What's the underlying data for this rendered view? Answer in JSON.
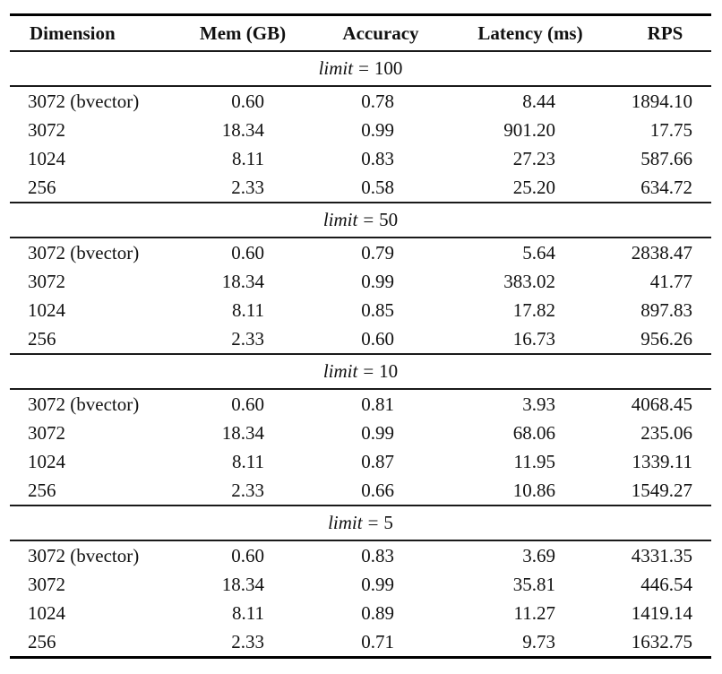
{
  "colors": {
    "background": "#ffffff",
    "text": "#111111",
    "rule": "#000000"
  },
  "table": {
    "columns": [
      "Dimension",
      "Mem (GB)",
      "Accuracy",
      "Latency (ms)",
      "RPS"
    ],
    "sections": [
      {
        "label": {
          "word": "limit",
          "eq": "=",
          "value": "100"
        },
        "rows": [
          [
            "3072 (bvector)",
            "0.60",
            "0.78",
            "8.44",
            "1894.10"
          ],
          [
            "3072",
            "18.34",
            "0.99",
            "901.20",
            "17.75"
          ],
          [
            "1024",
            "8.11",
            "0.83",
            "27.23",
            "587.66"
          ],
          [
            "256",
            "2.33",
            "0.58",
            "25.20",
            "634.72"
          ]
        ]
      },
      {
        "label": {
          "word": "limit",
          "eq": "=",
          "value": "50"
        },
        "rows": [
          [
            "3072 (bvector)",
            "0.60",
            "0.79",
            "5.64",
            "2838.47"
          ],
          [
            "3072",
            "18.34",
            "0.99",
            "383.02",
            "41.77"
          ],
          [
            "1024",
            "8.11",
            "0.85",
            "17.82",
            "897.83"
          ],
          [
            "256",
            "2.33",
            "0.60",
            "16.73",
            "956.26"
          ]
        ]
      },
      {
        "label": {
          "word": "limit",
          "eq": "=",
          "value": "10"
        },
        "rows": [
          [
            "3072 (bvector)",
            "0.60",
            "0.81",
            "3.93",
            "4068.45"
          ],
          [
            "3072",
            "18.34",
            "0.99",
            "68.06",
            "235.06"
          ],
          [
            "1024",
            "8.11",
            "0.87",
            "11.95",
            "1339.11"
          ],
          [
            "256",
            "2.33",
            "0.66",
            "10.86",
            "1549.27"
          ]
        ]
      },
      {
        "label": {
          "word": "limit",
          "eq": "=",
          "value": "5"
        },
        "rows": [
          [
            "3072 (bvector)",
            "0.60",
            "0.83",
            "3.69",
            "4331.35"
          ],
          [
            "3072",
            "18.34",
            "0.99",
            "35.81",
            "446.54"
          ],
          [
            "1024",
            "8.11",
            "0.89",
            "11.27",
            "1419.14"
          ],
          [
            "256",
            "2.33",
            "0.71",
            "9.73",
            "1632.75"
          ]
        ]
      }
    ]
  }
}
